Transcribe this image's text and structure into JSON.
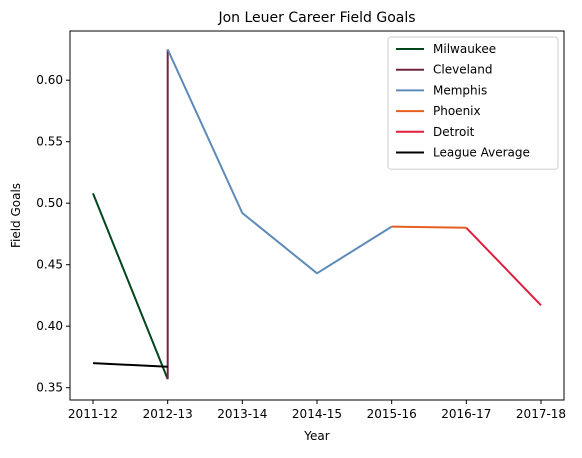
{
  "chart_data": {
    "type": "line",
    "title": "Jon Leuer Career Field Goals",
    "xlabel": "Year",
    "ylabel": "Field Goals",
    "categories": [
      "2011-12",
      "2012-13",
      "2013-14",
      "2014-15",
      "2015-16",
      "2016-17",
      "2017-18"
    ],
    "ylim": [
      0.34,
      0.64
    ],
    "yticks": [
      0.35,
      0.4,
      0.45,
      0.5,
      0.55,
      0.6
    ],
    "ytick_labels": [
      "0.35",
      "0.40",
      "0.45",
      "0.50",
      "0.55",
      "0.60"
    ],
    "grid": false,
    "legend_position": "top-right",
    "series": [
      {
        "name": "Milwaukee",
        "color": "#00471b",
        "points": [
          [
            "2011-12",
            0.508
          ],
          [
            "2012-13",
            0.357
          ]
        ]
      },
      {
        "name": "Cleveland",
        "color": "#6f263d",
        "points": [
          [
            "2012-13",
            0.357
          ],
          [
            "2012-13",
            0.625
          ]
        ]
      },
      {
        "name": "Memphis",
        "color": "#5d8ab8",
        "points": [
          [
            "2012-13",
            0.625
          ],
          [
            "2013-14",
            0.492
          ],
          [
            "2014-15",
            0.443
          ],
          [
            "2015-16",
            0.481
          ]
        ]
      },
      {
        "name": "Phoenix",
        "color": "#e56020",
        "points": [
          [
            "2015-16",
            0.481
          ],
          [
            "2016-17",
            0.48
          ]
        ]
      },
      {
        "name": "Detroit",
        "color": "#e01e3d",
        "points": [
          [
            "2016-17",
            0.48
          ],
          [
            "2017-18",
            0.417
          ]
        ]
      },
      {
        "name": "League Average",
        "color": "#000000",
        "points": [
          [
            "2011-12",
            0.37
          ],
          [
            "2012-13",
            0.367
          ]
        ]
      }
    ]
  }
}
